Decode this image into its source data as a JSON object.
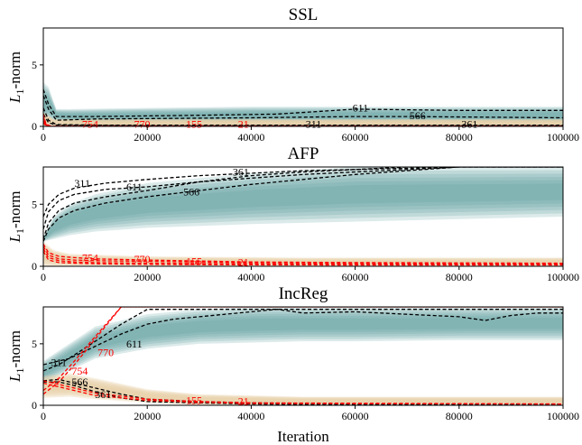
{
  "chart_data": [
    {
      "type": "line",
      "title": "SSL",
      "xlabel": "",
      "ylabel": "L1-norm",
      "xlim": [
        0,
        100000
      ],
      "ylim": [
        0,
        8
      ],
      "xticks": [
        0,
        20000,
        40000,
        60000,
        80000,
        100000
      ],
      "yticks": [
        0,
        5
      ],
      "bands": [
        {
          "color": "#5f9ea0",
          "x": [
            0,
            1000,
            2500,
            5000,
            20000,
            40000,
            60000,
            80000,
            100000
          ],
          "lower": [
            0.3,
            0.5,
            0.4,
            0.2,
            0.2,
            0.2,
            0.2,
            0.2,
            0.2
          ],
          "upper": [
            3.6,
            3.2,
            1.4,
            1.4,
            1.5,
            1.6,
            1.6,
            1.6,
            1.6
          ]
        },
        {
          "color": "#e8d2a8",
          "x": [
            0,
            2000,
            5000,
            20000,
            50000,
            100000
          ],
          "lower": [
            0,
            0,
            0,
            0,
            0,
            0
          ],
          "upper": [
            1.2,
            0.6,
            0.6,
            0.6,
            0.6,
            0.6
          ]
        }
      ],
      "series": [
        {
          "label": "611",
          "color": "#000000",
          "x": [
            0,
            1000,
            2500,
            10000,
            30000,
            45000,
            60000,
            80000,
            100000
          ],
          "y": [
            3.0,
            1.8,
            0.8,
            0.8,
            0.9,
            1.0,
            1.4,
            1.3,
            1.3
          ]
        },
        {
          "label": "566",
          "color": "#000000",
          "x": [
            0,
            1000,
            2500,
            10000,
            40000,
            60000,
            70000,
            100000
          ],
          "y": [
            2.5,
            1.4,
            0.5,
            0.6,
            0.7,
            0.8,
            0.8,
            0.7
          ]
        },
        {
          "label": "311",
          "color": "#000000",
          "x": [
            0,
            1000,
            2500,
            10000,
            40000,
            60000,
            100000
          ],
          "y": [
            1.5,
            0.5,
            0.15,
            0.1,
            0.1,
            0.1,
            0.1
          ]
        },
        {
          "label": "361",
          "color": "#000000",
          "x": [
            0,
            1000,
            2500,
            20000,
            60000,
            80000,
            100000
          ],
          "y": [
            1.0,
            0.3,
            0.1,
            0.05,
            0.05,
            0.05,
            0.05
          ]
        },
        {
          "label": "754",
          "color": "#ff0000",
          "x": [
            0,
            500,
            1500,
            100000
          ],
          "y": [
            1.0,
            0.2,
            0.0,
            0.0
          ]
        },
        {
          "label": "770",
          "color": "#ff0000",
          "x": [
            0,
            500,
            1500,
            100000
          ],
          "y": [
            0.8,
            0.15,
            0.0,
            0.0
          ]
        },
        {
          "label": "155",
          "color": "#ff0000",
          "x": [
            0,
            500,
            1500,
            100000
          ],
          "y": [
            0.5,
            0.1,
            0.0,
            0.0
          ]
        },
        {
          "label": "21",
          "color": "#ff0000",
          "x": [
            0,
            500,
            1500,
            100000
          ],
          "y": [
            0.3,
            0.05,
            0.0,
            0.0
          ]
        }
      ],
      "annotations": [
        {
          "text": "611",
          "x": 61000,
          "y": 1.4,
          "color": "#000000"
        },
        {
          "text": "566",
          "x": 72000,
          "y": 0.8,
          "color": "#000000"
        },
        {
          "text": "311",
          "x": 52000,
          "y": 0.1,
          "color": "#000000"
        },
        {
          "text": "361",
          "x": 82000,
          "y": 0.1,
          "color": "#000000"
        },
        {
          "text": "754",
          "x": 9000,
          "y": 0.1,
          "color": "#ff0000"
        },
        {
          "text": "770",
          "x": 19000,
          "y": 0.1,
          "color": "#ff0000"
        },
        {
          "text": "155",
          "x": 29000,
          "y": 0.1,
          "color": "#ff0000"
        },
        {
          "text": "21",
          "x": 38500,
          "y": 0.1,
          "color": "#ff0000"
        }
      ]
    },
    {
      "type": "line",
      "title": "AFP",
      "xlabel": "",
      "ylabel": "L1-norm",
      "xlim": [
        0,
        100000
      ],
      "ylim": [
        0,
        8
      ],
      "xticks": [
        0,
        20000,
        40000,
        60000,
        80000,
        100000
      ],
      "yticks": [
        0,
        5
      ],
      "bands": [
        {
          "color": "#5f9ea0",
          "x": [
            0,
            2000,
            5000,
            10000,
            20000,
            40000,
            60000,
            80000,
            100000
          ],
          "lower": [
            2.0,
            2.2,
            2.5,
            2.8,
            3.1,
            3.4,
            3.6,
            3.8,
            4.0
          ],
          "upper": [
            2.4,
            4.0,
            5.0,
            5.8,
            6.7,
            7.5,
            8.0,
            8.0,
            8.0
          ]
        },
        {
          "color": "#e8d2a8",
          "x": [
            0,
            2000,
            5000,
            20000,
            50000,
            100000
          ],
          "lower": [
            0.0,
            0.0,
            0.0,
            0.0,
            0.0,
            0.0
          ],
          "upper": [
            2.0,
            1.3,
            1.0,
            0.8,
            0.7,
            0.7
          ]
        }
      ],
      "series": [
        {
          "label": "311",
          "color": "#000000",
          "x": [
            0,
            1000,
            3000,
            6000,
            12000,
            20000,
            30000,
            40000,
            50000,
            60000,
            70000,
            80000,
            100000
          ],
          "y": [
            4.0,
            5.0,
            5.8,
            6.3,
            6.7,
            7.0,
            7.3,
            7.5,
            7.7,
            7.8,
            7.9,
            8.0,
            8.0
          ]
        },
        {
          "label": "611",
          "color": "#000000",
          "x": [
            0,
            1000,
            3000,
            6000,
            12000,
            20000,
            30000,
            40000,
            50000,
            60000,
            70000,
            80000,
            100000
          ],
          "y": [
            3.0,
            4.4,
            5.3,
            5.8,
            6.2,
            6.4,
            6.8,
            7.1,
            7.4,
            7.6,
            7.8,
            8.0,
            8.0
          ]
        },
        {
          "label": "361",
          "color": "#000000",
          "x": [
            0,
            1000,
            3000,
            6000,
            12000,
            20000,
            30000,
            40000,
            50000,
            60000,
            70000,
            80000,
            100000
          ],
          "y": [
            2.2,
            3.5,
            4.5,
            5.1,
            5.6,
            6.1,
            6.8,
            7.3,
            7.6,
            7.8,
            8.0,
            8.0,
            8.0
          ]
        },
        {
          "label": "566",
          "color": "#000000",
          "x": [
            0,
            1000,
            3000,
            6000,
            12000,
            20000,
            30000,
            40000,
            50000,
            60000,
            70000,
            80000,
            100000
          ],
          "y": [
            2.0,
            3.0,
            3.9,
            4.5,
            5.1,
            5.6,
            6.1,
            6.6,
            7.0,
            7.4,
            7.7,
            8.0,
            8.0
          ]
        },
        {
          "label": "754",
          "color": "#ff0000",
          "x": [
            0,
            1000,
            3000,
            6000,
            10000,
            20000,
            40000,
            60000,
            100000
          ],
          "y": [
            1.8,
            1.1,
            0.8,
            0.7,
            0.6,
            0.5,
            0.35,
            0.3,
            0.25
          ]
        },
        {
          "label": "770",
          "color": "#ff0000",
          "x": [
            0,
            1000,
            3000,
            6000,
            10000,
            20000,
            40000,
            60000,
            100000
          ],
          "y": [
            1.6,
            0.9,
            0.6,
            0.5,
            0.45,
            0.4,
            0.3,
            0.25,
            0.2
          ]
        },
        {
          "label": "155",
          "color": "#ff0000",
          "x": [
            0,
            1000,
            3000,
            6000,
            10000,
            20000,
            40000,
            60000,
            100000
          ],
          "y": [
            1.4,
            0.7,
            0.45,
            0.35,
            0.3,
            0.25,
            0.2,
            0.15,
            0.15
          ]
        },
        {
          "label": "21",
          "color": "#ff0000",
          "x": [
            0,
            1000,
            3000,
            6000,
            10000,
            20000,
            40000,
            60000,
            100000
          ],
          "y": [
            1.2,
            0.5,
            0.3,
            0.25,
            0.2,
            0.15,
            0.12,
            0.1,
            0.1
          ]
        }
      ],
      "annotations": [
        {
          "text": "311",
          "x": 7500,
          "y": 6.6,
          "color": "#000000"
        },
        {
          "text": "611",
          "x": 17500,
          "y": 6.3,
          "color": "#000000"
        },
        {
          "text": "361",
          "x": 38000,
          "y": 7.5,
          "color": "#000000"
        },
        {
          "text": "566",
          "x": 28500,
          "y": 5.9,
          "color": "#000000"
        },
        {
          "text": "754",
          "x": 9000,
          "y": 0.6,
          "color": "#ff0000"
        },
        {
          "text": "770",
          "x": 19000,
          "y": 0.5,
          "color": "#ff0000"
        },
        {
          "text": "155",
          "x": 29000,
          "y": 0.3,
          "color": "#ff0000"
        },
        {
          "text": "21",
          "x": 38500,
          "y": 0.25,
          "color": "#ff0000"
        }
      ]
    },
    {
      "type": "line",
      "title": "IncReg",
      "xlabel": "Iteration",
      "ylabel": "L1-norm",
      "xlim": [
        0,
        100000
      ],
      "ylim": [
        0,
        8
      ],
      "xticks": [
        0,
        20000,
        40000,
        60000,
        80000,
        100000
      ],
      "yticks": [
        0,
        5
      ],
      "bands": [
        {
          "color": "#5f9ea0",
          "x": [
            0,
            5000,
            10000,
            20000,
            30000,
            40000,
            50000,
            60000,
            80000,
            100000
          ],
          "lower": [
            1.8,
            2.8,
            3.8,
            4.6,
            5.0,
            5.1,
            5.2,
            5.2,
            5.3,
            5.3
          ],
          "upper": [
            3.6,
            5.0,
            6.4,
            7.4,
            7.8,
            8.0,
            8.0,
            8.0,
            8.0,
            8.0
          ]
        },
        {
          "color": "#e8d2a8",
          "x": [
            0,
            5000,
            10000,
            20000,
            30000,
            50000,
            100000
          ],
          "lower": [
            0.6,
            0.7,
            0.5,
            0.2,
            0.0,
            0.0,
            0.0
          ],
          "upper": [
            2.4,
            2.6,
            2.2,
            1.3,
            0.9,
            0.7,
            0.7
          ]
        }
      ],
      "series": [
        {
          "label": "311",
          "color": "#000000",
          "x": [
            0,
            3000,
            6000,
            10000,
            15000,
            20000,
            100000
          ],
          "y": [
            2.8,
            3.3,
            4.1,
            5.2,
            6.6,
            7.8,
            7.8
          ]
        },
        {
          "label": "611",
          "color": "#000000",
          "x": [
            0,
            5000,
            10000,
            15000,
            20000,
            25000,
            30000,
            40000,
            45000,
            50000,
            60000,
            70000,
            80000,
            85000,
            90000,
            95000,
            100000
          ],
          "y": [
            3.3,
            3.8,
            4.8,
            5.8,
            6.6,
            7.0,
            7.2,
            7.6,
            7.8,
            7.5,
            7.6,
            7.4,
            7.2,
            6.9,
            7.3,
            7.5,
            7.5
          ]
        },
        {
          "label": "566",
          "color": "#000000",
          "x": [
            0,
            3000,
            6000,
            10000,
            15000,
            20000,
            30000,
            40000,
            60000,
            100000
          ],
          "y": [
            2.0,
            2.1,
            1.8,
            1.4,
            0.9,
            0.5,
            0.3,
            0.2,
            0.1,
            0.1
          ]
        },
        {
          "label": "361",
          "color": "#000000",
          "x": [
            0,
            3000,
            6000,
            10000,
            15000,
            20000,
            30000,
            40000,
            60000,
            100000
          ],
          "y": [
            1.9,
            1.9,
            1.6,
            1.1,
            0.6,
            0.3,
            0.2,
            0.1,
            0.05,
            0.05
          ]
        },
        {
          "label": "754",
          "color": "#ff0000",
          "x": [
            0,
            3000,
            6000,
            10000,
            15000,
            100000
          ],
          "y": [
            1.2,
            2.2,
            3.6,
            5.6,
            8.0,
            8.0
          ]
        },
        {
          "label": "770",
          "color": "#ff0000",
          "x": [
            0,
            3000,
            6000,
            10000,
            15000,
            100000
          ],
          "y": [
            0.9,
            1.9,
            3.3,
            5.4,
            8.0,
            8.0
          ]
        },
        {
          "label": "155",
          "color": "#ff0000",
          "x": [
            0,
            10000,
            20000,
            30000,
            40000,
            100000
          ],
          "y": [
            2.0,
            1.0,
            0.5,
            0.3,
            0.2,
            0.1
          ]
        },
        {
          "label": "21",
          "color": "#ff0000",
          "x": [
            0,
            10000,
            20000,
            30000,
            40000,
            100000
          ],
          "y": [
            1.8,
            0.8,
            0.4,
            0.25,
            0.15,
            0.1
          ]
        }
      ],
      "annotations": [
        {
          "text": "311",
          "x": 3000,
          "y": 3.4,
          "color": "#000000"
        },
        {
          "text": "611",
          "x": 17500,
          "y": 4.9,
          "color": "#000000"
        },
        {
          "text": "566",
          "x": 7000,
          "y": 1.8,
          "color": "#000000"
        },
        {
          "text": "361",
          "x": 11500,
          "y": 0.8,
          "color": "#000000"
        },
        {
          "text": "754",
          "x": 7000,
          "y": 2.7,
          "color": "#ff0000"
        },
        {
          "text": "770",
          "x": 12000,
          "y": 4.2,
          "color": "#ff0000"
        },
        {
          "text": "155",
          "x": 29000,
          "y": 0.3,
          "color": "#ff0000"
        },
        {
          "text": "21",
          "x": 38500,
          "y": 0.25,
          "color": "#ff0000"
        }
      ]
    }
  ]
}
